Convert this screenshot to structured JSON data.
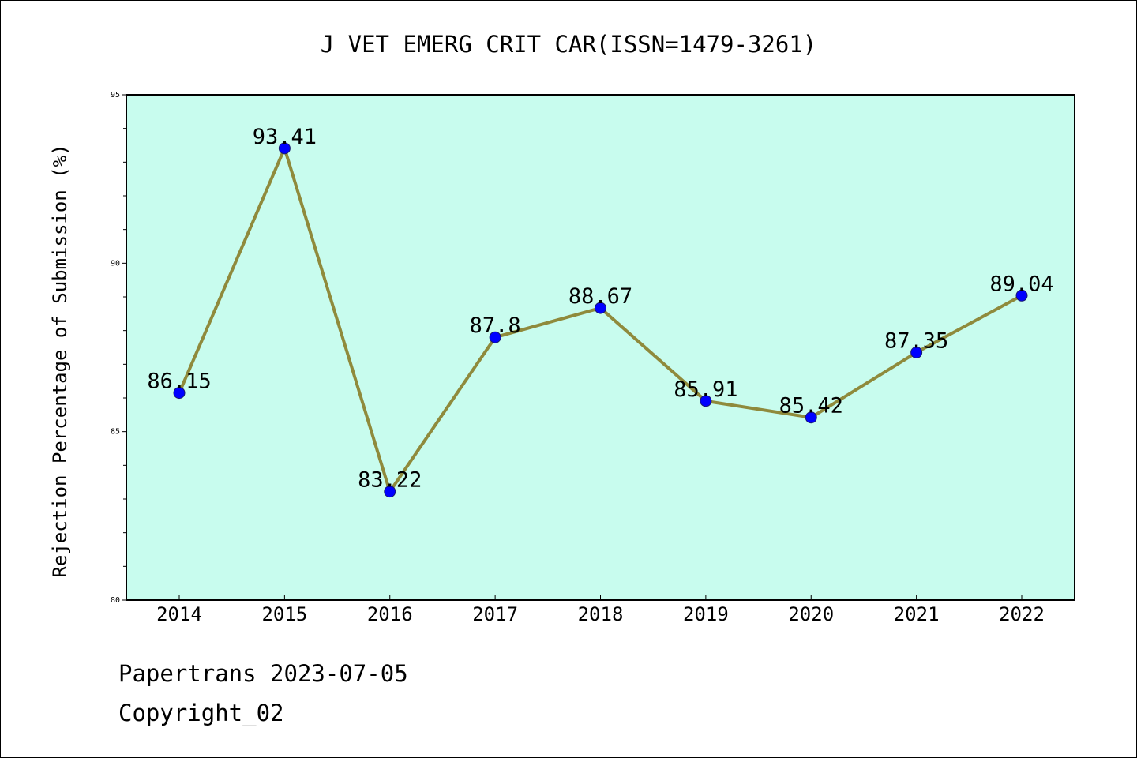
{
  "chart_data": {
    "type": "line",
    "title": "J VET EMERG CRIT CAR(ISSN=1479-3261)",
    "xlabel": "",
    "ylabel": "Rejection Percentage of Submission (%)",
    "categories": [
      "2014",
      "2015",
      "2016",
      "2017",
      "2018",
      "2019",
      "2020",
      "2021",
      "2022"
    ],
    "series": [
      {
        "values": [
          86.15,
          93.41,
          83.22,
          87.8,
          88.67,
          85.91,
          85.42,
          87.35,
          89.04
        ],
        "data_labels": [
          "86.15",
          "93.41",
          "83.22",
          "87.8",
          "88.67",
          "85.91",
          "85.42",
          "87.35",
          "89.04"
        ]
      }
    ],
    "ylim": [
      80,
      95
    ],
    "y_ticks": [
      "80",
      "85",
      "90",
      "95"
    ],
    "grid": false,
    "colors": {
      "plot_background": "#c8fcee",
      "line": "#8f8a3c",
      "marker": "#0000ff"
    }
  },
  "footer": {
    "source": "Papertrans 2023-07-05",
    "copyright": "Copyright_02"
  }
}
